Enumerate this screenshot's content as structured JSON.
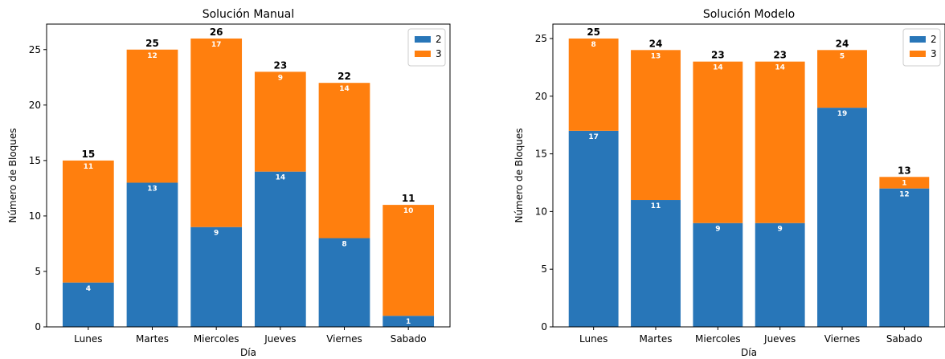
{
  "chart_data": [
    {
      "type": "bar",
      "stacked": true,
      "title": "Solución Manual",
      "xlabel": "Día",
      "ylabel": "Número de Bloques",
      "categories": [
        "Lunes",
        "Martes",
        "Miercoles",
        "Jueves",
        "Viernes",
        "Sabado"
      ],
      "series": [
        {
          "name": "2",
          "color": "#2876b8",
          "values": [
            4,
            13,
            9,
            14,
            8,
            1
          ]
        },
        {
          "name": "3",
          "color": "#ff7f0e",
          "values": [
            11,
            12,
            17,
            9,
            14,
            10
          ]
        }
      ],
      "totals": [
        15,
        25,
        26,
        23,
        22,
        11
      ],
      "ylim": [
        0,
        27.3
      ],
      "yticks": [
        0,
        5,
        10,
        15,
        20,
        25
      ],
      "legend": "top-right",
      "grid": false
    },
    {
      "type": "bar",
      "stacked": true,
      "title": "Solución Modelo",
      "xlabel": "Día",
      "ylabel": "Número de Bloques",
      "categories": [
        "Lunes",
        "Martes",
        "Miercoles",
        "Jueves",
        "Viernes",
        "Sabado"
      ],
      "series": [
        {
          "name": "2",
          "color": "#2876b8",
          "values": [
            17,
            11,
            9,
            9,
            19,
            12
          ]
        },
        {
          "name": "3",
          "color": "#ff7f0e",
          "values": [
            8,
            13,
            14,
            14,
            5,
            1
          ]
        }
      ],
      "totals": [
        25,
        24,
        23,
        23,
        24,
        13
      ],
      "ylim": [
        0,
        26.25
      ],
      "yticks": [
        0,
        5,
        10,
        15,
        20,
        25
      ],
      "legend": "top-right",
      "grid": false
    }
  ]
}
